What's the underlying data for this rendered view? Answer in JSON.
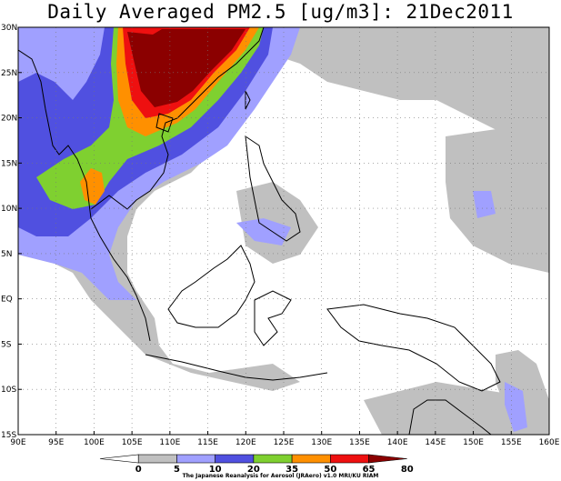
{
  "title": "Daily Averaged PM2.5 [ug/m3]: 21Dec2011",
  "credit": "The Japanese Reanalysis for Aerosol (JRAero) v1.0 MRI/KU RIAM",
  "lat_labels": [
    "30N",
    "25N",
    "20N",
    "15N",
    "10N",
    "5N",
    "EQ",
    "5S",
    "10S",
    "15S"
  ],
  "lon_labels": [
    "90E",
    "95E",
    "100E",
    "105E",
    "110E",
    "115E",
    "120E",
    "125E",
    "130E",
    "135E",
    "140E",
    "145E",
    "150E",
    "155E",
    "160E"
  ],
  "colorbar": {
    "labels": [
      "0",
      "5",
      "10",
      "20",
      "35",
      "50",
      "65",
      "80"
    ],
    "colors": [
      "#ffffff",
      "#c0c0c0",
      "#a0a0ff",
      "#5050e0",
      "#7fd030",
      "#ff9000",
      "#ee1010",
      "#8b0000"
    ]
  },
  "map_data": {
    "extent": {
      "lon": [
        90,
        160
      ],
      "lat": [
        -15,
        30
      ]
    },
    "field": "PM2.5 daily average",
    "units": "ug/m3",
    "date": "21Dec2011"
  }
}
